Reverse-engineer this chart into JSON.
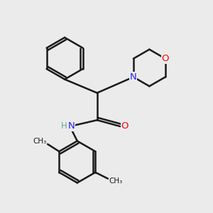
{
  "background_color": "#ebebeb",
  "bond_color": "#1a1a1a",
  "nitrogen_color": "#2020ff",
  "oxygen_color": "#ff0000",
  "hydrogen_color": "#5aaa9a",
  "carbon_color": "#1a1a1a",
  "figsize": [
    3.0,
    3.0
  ],
  "dpi": 100,
  "xlim": [
    0,
    10
  ],
  "ylim": [
    0,
    10
  ]
}
